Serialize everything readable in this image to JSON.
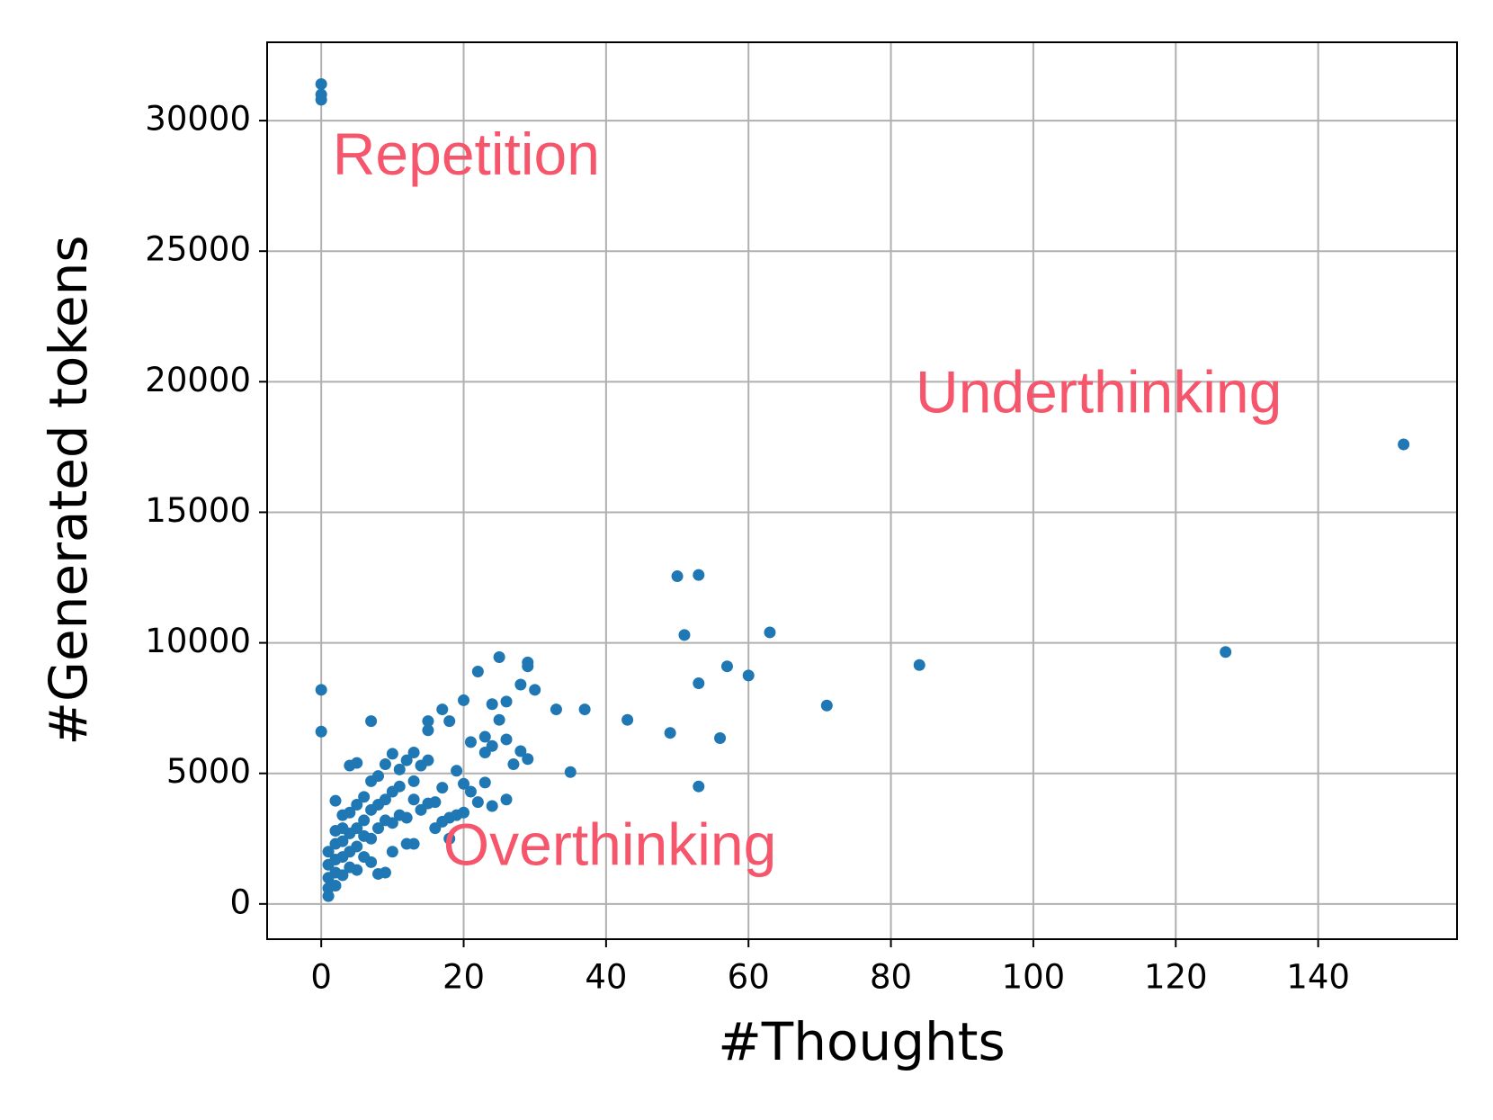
{
  "chart_data": {
    "type": "scatter",
    "x_label": "#Thoughts",
    "y_label": "#Generated tokens",
    "annotations": [
      "Repetition",
      "Underthinking",
      "Overthinking"
    ],
    "color": "#1f77b4",
    "grid": true,
    "xlim": [
      -7.6,
      159.5
    ],
    "ylim": [
      -1350,
      33000
    ],
    "xticks": [
      0,
      20,
      40,
      60,
      80,
      100,
      120,
      140
    ],
    "yticks": [
      0,
      5000,
      10000,
      15000,
      20000,
      25000,
      30000
    ],
    "x": [
      0,
      0,
      0,
      0,
      0,
      152,
      127,
      84,
      71,
      63,
      60,
      57,
      56,
      53,
      53,
      53,
      51,
      50,
      49,
      43,
      37,
      35,
      33,
      30,
      29,
      29,
      29,
      28,
      28,
      27,
      26,
      26,
      26,
      25,
      25,
      24,
      24,
      24,
      23,
      23,
      23,
      22,
      22,
      21,
      21,
      20,
      20,
      20,
      19,
      19,
      18,
      18,
      18,
      17,
      17,
      17,
      16,
      16,
      15,
      15,
      15,
      15,
      14,
      14,
      13,
      13,
      13,
      13,
      12,
      12,
      12,
      11,
      11,
      11,
      10,
      10,
      10,
      10,
      9,
      9,
      9,
      9,
      8,
      8,
      8,
      8,
      7,
      7,
      7,
      7,
      7,
      6,
      6,
      6,
      6,
      5,
      5,
      5,
      5,
      5,
      4,
      4,
      4,
      4,
      4,
      3,
      3,
      3,
      3,
      3,
      2,
      2,
      2,
      2,
      2,
      2,
      1,
      1,
      1,
      1,
      1
    ],
    "y": [
      31400,
      31000,
      30800,
      8200,
      6600,
      17600,
      9650,
      9150,
      7600,
      10400,
      8750,
      9100,
      6350,
      12600,
      8450,
      4500,
      10300,
      12550,
      6550,
      7050,
      7450,
      5050,
      7450,
      8200,
      9250,
      9100,
      5550,
      8400,
      5850,
      5350,
      7750,
      6300,
      4000,
      9450,
      7050,
      7650,
      6050,
      3750,
      6400,
      5800,
      4650,
      8900,
      3900,
      6200,
      4300,
      7800,
      4600,
      3500,
      5100,
      3400,
      7000,
      3300,
      2500,
      7450,
      4450,
      3150,
      3900,
      2900,
      7000,
      6650,
      5500,
      3850,
      5300,
      3600,
      5800,
      4700,
      4000,
      2300,
      5500,
      3300,
      2300,
      5150,
      4500,
      3400,
      5750,
      4300,
      3100,
      2000,
      5350,
      4000,
      3200,
      1200,
      4900,
      3800,
      2900,
      1150,
      7000,
      4700,
      3600,
      2500,
      1600,
      4100,
      3200,
      2600,
      1800,
      5400,
      3800,
      2900,
      2200,
      1300,
      5300,
      3500,
      2700,
      2000,
      1400,
      3400,
      2900,
      2400,
      1800,
      1100,
      3950,
      2800,
      2300,
      1700,
      1200,
      700,
      2000,
      1500,
      1000,
      600,
      300
    ]
  }
}
